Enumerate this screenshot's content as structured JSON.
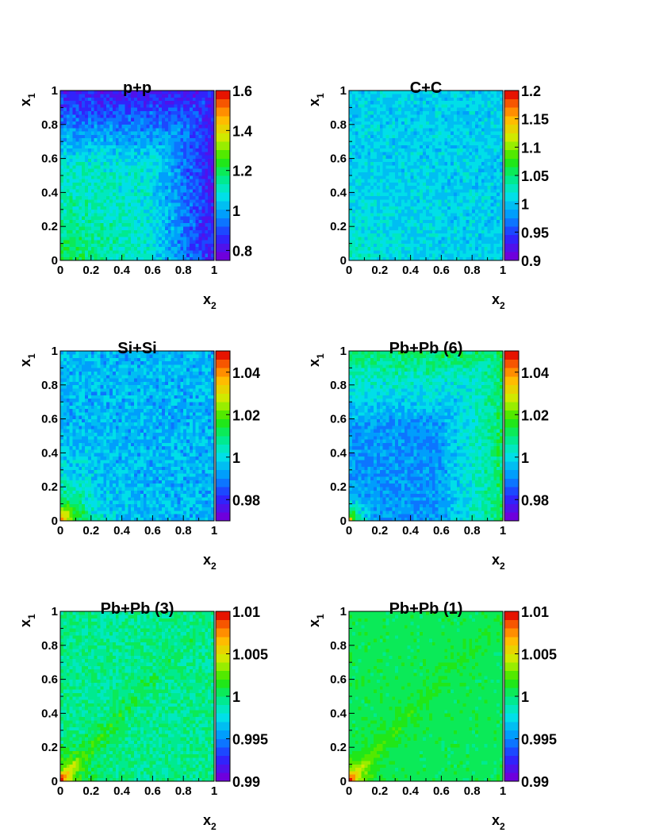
{
  "chart_data": [
    {
      "type": "heatmap",
      "title": "p+p",
      "xlabel": "x2",
      "ylabel": "x1",
      "xlim": [
        0,
        1
      ],
      "ylim": [
        0,
        1
      ],
      "bins": 50,
      "xticks": [
        "0",
        "0.2",
        "0.4",
        "0.6",
        "0.8",
        "1"
      ],
      "yticks": [
        "0",
        "0.2",
        "0.4",
        "0.6",
        "0.8",
        "1"
      ],
      "zlim": [
        0.75,
        1.6
      ],
      "zticks": [
        "0.8",
        "1",
        "1.2",
        "1.4",
        "1.6"
      ],
      "pattern": {
        "base": 1.08,
        "noise": 0.06,
        "corner_high": 0.15,
        "corner_scale": 0.3,
        "low_edges": 0.25,
        "diag_high": 0
      }
    },
    {
      "type": "heatmap",
      "title": "C+C",
      "xlabel": "x2",
      "ylabel": "x1",
      "xlim": [
        0,
        1
      ],
      "ylim": [
        0,
        1
      ],
      "bins": 50,
      "xticks": [
        "0",
        "0.2",
        "0.4",
        "0.6",
        "0.8",
        "1"
      ],
      "yticks": [
        "0",
        "0.2",
        "0.4",
        "0.6",
        "0.8",
        "1"
      ],
      "zlim": [
        0.9,
        1.2
      ],
      "zticks": [
        "0.9",
        "0.95",
        "1",
        "1.05",
        "1.1",
        "1.15",
        "1.2"
      ],
      "pattern": {
        "base": 1.005,
        "noise": 0.018,
        "corner_high": 0.03,
        "corner_scale": 0.2,
        "low_edges": 0,
        "diag_high": 0
      }
    },
    {
      "type": "heatmap",
      "title": "Si+Si",
      "xlabel": "x2",
      "ylabel": "x1",
      "xlim": [
        0,
        1
      ],
      "ylim": [
        0,
        1
      ],
      "bins": 50,
      "xticks": [
        "0",
        "0.2",
        "0.4",
        "0.6",
        "0.8",
        "1"
      ],
      "yticks": [
        "0",
        "0.2",
        "0.4",
        "0.6",
        "0.8",
        "1"
      ],
      "zlim": [
        0.97,
        1.05
      ],
      "zticks": [
        "0.98",
        "1",
        "1.02",
        "1.04"
      ],
      "pattern": {
        "base": 0.995,
        "noise": 0.006,
        "corner_high": 0.05,
        "corner_scale": 0.12,
        "low_edges": 0,
        "diag_high": 0
      }
    },
    {
      "type": "heatmap",
      "title": "Pb+Pb (6)",
      "xlabel": "x2",
      "ylabel": "x1",
      "xlim": [
        0,
        1
      ],
      "ylim": [
        0,
        1
      ],
      "bins": 50,
      "xticks": [
        "0",
        "0.2",
        "0.4",
        "0.6",
        "0.8",
        "1"
      ],
      "yticks": [
        "0",
        "0.2",
        "0.4",
        "0.6",
        "0.8",
        "1"
      ],
      "zlim": [
        0.97,
        1.05
      ],
      "zticks": [
        "0.98",
        "1",
        "1.02",
        "1.04"
      ],
      "pattern": {
        "base": 0.991,
        "noise": 0.005,
        "corner_high": 0.05,
        "corner_scale": 0.06,
        "low_edges": -0.02,
        "diag_high": 0
      }
    },
    {
      "type": "heatmap",
      "title": "Pb+Pb (3)",
      "xlabel": "x2",
      "ylabel": "x1",
      "xlim": [
        0,
        1
      ],
      "ylim": [
        0,
        1
      ],
      "bins": 50,
      "xticks": [
        "0",
        "0.2",
        "0.4",
        "0.6",
        "0.8",
        "1"
      ],
      "yticks": [
        "0",
        "0.2",
        "0.4",
        "0.6",
        "0.8",
        "1"
      ],
      "zlim": [
        0.99,
        1.01
      ],
      "zticks": [
        "0.99",
        "0.995",
        "1",
        "1.005",
        "1.01"
      ],
      "pattern": {
        "base": 0.9995,
        "noise": 0.0012,
        "corner_high": 0.008,
        "corner_scale": 0.08,
        "low_edges": 0,
        "diag_high": 0.004
      }
    },
    {
      "type": "heatmap",
      "title": "Pb+Pb (1)",
      "xlabel": "x2",
      "ylabel": "x1",
      "xlim": [
        0,
        1
      ],
      "ylim": [
        0,
        1
      ],
      "bins": 50,
      "xticks": [
        "0",
        "0.2",
        "0.4",
        "0.6",
        "0.8",
        "1"
      ],
      "yticks": [
        "0",
        "0.2",
        "0.4",
        "0.6",
        "0.8",
        "1"
      ],
      "zlim": [
        0.99,
        1.01
      ],
      "zticks": [
        "0.99",
        "0.995",
        "1",
        "1.005",
        "1.01"
      ],
      "pattern": {
        "base": 1.0005,
        "noise": 0.0006,
        "corner_high": 0.008,
        "corner_scale": 0.06,
        "low_edges": 0,
        "diag_high": 0.003
      }
    }
  ]
}
